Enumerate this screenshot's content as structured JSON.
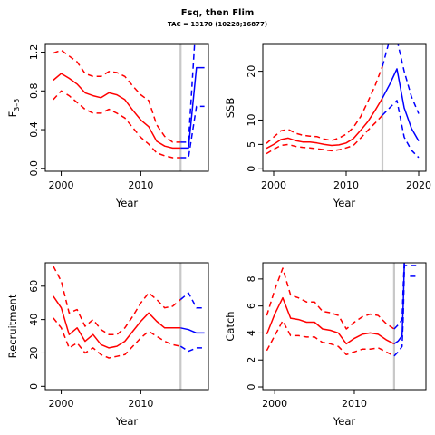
{
  "title": "Fsq, then Flim",
  "subtitle": "TAC = 13170 (10228;16877)",
  "colors": {
    "history": "#ff0000",
    "projection": "#0000ff",
    "marker": "#c8c8c8",
    "axis": "#000000"
  },
  "chart_data": [
    {
      "type": "line",
      "ylabel": "F3-5",
      "ylabel_main": "F",
      "ylabel_sub": "3–5",
      "xlabel": "Year",
      "xlim": [
        1998,
        2018.5
      ],
      "ylim": [
        -0.03,
        1.28
      ],
      "xticks": [
        2000,
        2010
      ],
      "yticks": [
        0.0,
        0.4,
        0.8,
        1.2
      ],
      "xticklabels": [
        "2000",
        "2010"
      ],
      "yticklabels": [
        "0.0",
        "0.4",
        "0.8",
        "1.2"
      ],
      "marker_year": 2015,
      "history": {
        "years": [
          1999,
          2000,
          2001,
          2002,
          2003,
          2004,
          2005,
          2006,
          2007,
          2008,
          2009,
          2010,
          2011,
          2012,
          2013,
          2014,
          2015
        ],
        "median": [
          0.91,
          0.98,
          0.93,
          0.87,
          0.78,
          0.75,
          0.73,
          0.78,
          0.76,
          0.71,
          0.6,
          0.5,
          0.43,
          0.28,
          0.23,
          0.21,
          0.21
        ],
        "upper": [
          1.19,
          1.22,
          1.16,
          1.1,
          0.98,
          0.95,
          0.95,
          1.0,
          0.99,
          0.95,
          0.85,
          0.76,
          0.7,
          0.45,
          0.33,
          0.27,
          0.27
        ],
        "lower": [
          0.71,
          0.8,
          0.75,
          0.68,
          0.61,
          0.57,
          0.57,
          0.61,
          0.57,
          0.52,
          0.42,
          0.32,
          0.25,
          0.16,
          0.13,
          0.11,
          0.11
        ]
      },
      "projection": {
        "years": [
          2015,
          2016,
          2017,
          2018
        ],
        "median": [
          0.21,
          0.21,
          1.04,
          1.04
        ],
        "upper": [
          0.27,
          0.27,
          1.6,
          1.6
        ],
        "lower": [
          0.11,
          0.11,
          0.64,
          0.64
        ]
      }
    },
    {
      "type": "line",
      "ylabel": "SSB",
      "xlabel": "Year",
      "xlim": [
        1998.5,
        2021
      ],
      "ylim": [
        -0.5,
        25.5
      ],
      "xticks": [
        2000,
        2010,
        2020
      ],
      "yticks": [
        0,
        5,
        10,
        20
      ],
      "xticklabels": [
        "2000",
        "2010",
        "2020"
      ],
      "yticklabels": [
        "0",
        "5",
        "10",
        "20"
      ],
      "marker_year": 2015,
      "history": {
        "years": [
          1999,
          2000,
          2001,
          2002,
          2003,
          2004,
          2005,
          2006,
          2007,
          2008,
          2009,
          2010,
          2011,
          2012,
          2013,
          2014,
          2015
        ],
        "median": [
          4.2,
          5.0,
          6.0,
          6.3,
          5.8,
          5.5,
          5.5,
          5.3,
          5.0,
          4.8,
          4.9,
          5.3,
          6.2,
          7.9,
          9.7,
          12.0,
          14.5
        ],
        "upper": [
          5.2,
          6.5,
          7.8,
          8.1,
          7.3,
          6.9,
          6.7,
          6.6,
          6.1,
          5.8,
          6.3,
          7.1,
          8.5,
          10.7,
          13.8,
          17.1,
          21.0
        ],
        "lower": [
          3.1,
          4.0,
          4.8,
          5.0,
          4.6,
          4.4,
          4.3,
          4.1,
          3.9,
          3.7,
          3.9,
          4.3,
          4.8,
          6.3,
          7.9,
          9.4,
          11.0
        ]
      },
      "projection": {
        "years": [
          2015,
          2016,
          2017,
          2018,
          2019,
          2020
        ],
        "median": [
          14.5,
          17.3,
          20.5,
          12.5,
          8.3,
          5.7
        ],
        "upper": [
          21.0,
          26.5,
          26.5,
          20.0,
          14.8,
          11.3
        ],
        "lower": [
          11.0,
          12.5,
          14.0,
          6.5,
          3.8,
          2.3
        ]
      }
    },
    {
      "type": "line",
      "ylabel": "Recruitment",
      "xlabel": "Year",
      "xlim": [
        1998,
        2018.5
      ],
      "ylim": [
        -2,
        74
      ],
      "xticks": [
        2000,
        2010
      ],
      "yticks": [
        0,
        20,
        40,
        60
      ],
      "xticklabels": [
        "2000",
        "2010"
      ],
      "yticklabels": [
        "0",
        "20",
        "40",
        "60"
      ],
      "marker_year": 2015,
      "history": {
        "years": [
          1999,
          2000,
          2001,
          2002,
          2003,
          2004,
          2005,
          2006,
          2007,
          2008,
          2009,
          2010,
          2011,
          2012,
          2013,
          2014,
          2015
        ],
        "median": [
          54,
          47,
          31,
          35,
          27,
          31,
          25,
          23,
          24,
          27,
          33,
          39,
          44,
          39,
          35,
          35,
          35
        ],
        "upper": [
          72,
          63,
          44,
          46,
          36,
          40,
          34,
          31,
          31,
          35,
          42,
          50,
          56,
          52,
          47,
          48,
          52
        ],
        "lower": [
          41,
          35,
          23,
          26,
          20,
          23,
          19,
          17,
          18,
          19,
          24,
          29,
          33,
          30,
          27,
          25,
          24
        ]
      },
      "projection": {
        "years": [
          2015,
          2016,
          2017,
          2018
        ],
        "median": [
          35,
          34,
          32,
          32
        ],
        "upper": [
          52,
          56,
          47,
          47
        ],
        "lower": [
          24,
          21,
          23,
          23
        ]
      }
    },
    {
      "type": "line",
      "ylabel": "Catch",
      "xlabel": "Year",
      "xlim": [
        1998.5,
        2019
      ],
      "ylim": [
        -0.2,
        9.2
      ],
      "xticks": [
        2000,
        2010
      ],
      "yticks": [
        0,
        2,
        4,
        6,
        8
      ],
      "xticklabels": [
        "2000",
        "2010"
      ],
      "yticklabels": [
        "0",
        "2",
        "4",
        "6",
        "8"
      ],
      "marker_year": 2015,
      "history": {
        "years": [
          1999,
          2000,
          2001,
          2002,
          2003,
          2004,
          2005,
          2006,
          2007,
          2008,
          2009,
          2010,
          2011,
          2012,
          2013,
          2014,
          2015
        ],
        "median": [
          3.9,
          5.4,
          6.6,
          5.1,
          5.0,
          4.8,
          4.8,
          4.3,
          4.2,
          4.0,
          3.2,
          3.6,
          3.9,
          4.0,
          3.9,
          3.5,
          3.2
        ],
        "upper": [
          5.3,
          7.2,
          8.8,
          6.8,
          6.6,
          6.3,
          6.3,
          5.6,
          5.5,
          5.3,
          4.3,
          4.8,
          5.2,
          5.4,
          5.3,
          4.7,
          4.3
        ],
        "lower": [
          2.7,
          3.8,
          4.9,
          3.8,
          3.8,
          3.7,
          3.7,
          3.3,
          3.2,
          3.0,
          2.4,
          2.6,
          2.8,
          2.8,
          2.9,
          2.6,
          2.3
        ]
      },
      "projection": {
        "years": [
          2015,
          2015.5,
          2016,
          2016.15,
          2016.3,
          2017,
          2018
        ],
        "median": [
          3.2,
          3.4,
          3.8,
          6.2,
          9.5,
          9.5,
          9.5
        ],
        "upper": [
          4.3,
          4.6,
          5.0,
          7.5,
          9.5,
          9.5,
          9.5
        ],
        "lower": [
          2.3,
          2.6,
          3.0,
          5.2,
          9.0,
          9.0,
          9.0
        ]
      },
      "projection_upper_extra": {
        "years": [
          2017,
          2018
        ],
        "values": [
          8.2,
          8.2
        ]
      }
    }
  ]
}
